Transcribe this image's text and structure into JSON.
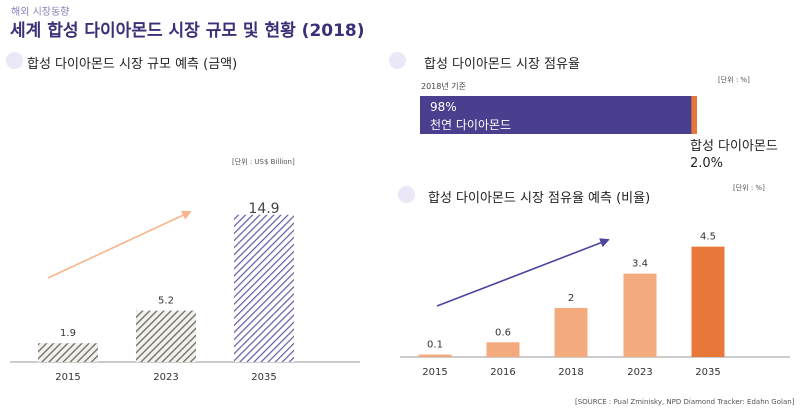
{
  "header": {
    "subtitle": "해외 시장동향",
    "title": "세계 합성 다이아몬드 시장 규모 및 현황 (2018)"
  },
  "left": {
    "section_title": "합성 다이아몬드 시장 규모 예측 (금액)",
    "unit": "[단위 : US$ Billion]"
  },
  "share": {
    "section_title": "합성 다이아몬드 시장 점유율",
    "unit": "[단위 : %]",
    "basis": "2018년 기준",
    "natural_value": "98%",
    "natural_label": "천연 다이아몬드",
    "synthetic_label": "합성 다이아몬드",
    "synthetic_value": "2.0%"
  },
  "forecast": {
    "section_title": "합성 다이아몬드 시장 점유율 예측 (비율)",
    "unit": "[단위 : %]"
  },
  "source": "[SOURCE : Pual Zminisky, NPD Diamond Tracker: Edahn Golan]",
  "colors": {
    "title": "#3b2f78",
    "purple_bar": "#4a3f8f",
    "orange_bar": "#e8773a",
    "light_orange": "#f3aa7c",
    "arrow_left": "#f6b58a",
    "arrow_right": "#4a45a0"
  },
  "chart_data": [
    {
      "type": "bar",
      "categories": [
        "2015",
        "2023",
        "2035"
      ],
      "values": [
        1.9,
        5.2,
        14.9
      ],
      "value_labels": [
        "1.9",
        "5.2",
        "14.9"
      ],
      "unit": "[단위 : US$ Billion]",
      "ylim": [
        0,
        17
      ],
      "grid": false
    },
    {
      "type": "bar",
      "orientation": "horizontal-stacked",
      "categories": [
        "2018년 기준"
      ],
      "series": [
        {
          "name": "천연 다이아몬드",
          "values": [
            98
          ]
        },
        {
          "name": "합성 다이아몬드",
          "values": [
            2.0
          ]
        }
      ],
      "unit": "[단위 : %]"
    },
    {
      "type": "bar",
      "categories": [
        "2015",
        "2016",
        "2018",
        "2023",
        "2035"
      ],
      "values": [
        0.1,
        0.6,
        2,
        3.4,
        4.5
      ],
      "value_labels": [
        "0.1",
        "0.6",
        "2",
        "3.4",
        "4.5"
      ],
      "unit": "[단위 : %]",
      "ylim": [
        0,
        5.3
      ],
      "grid": false
    }
  ]
}
